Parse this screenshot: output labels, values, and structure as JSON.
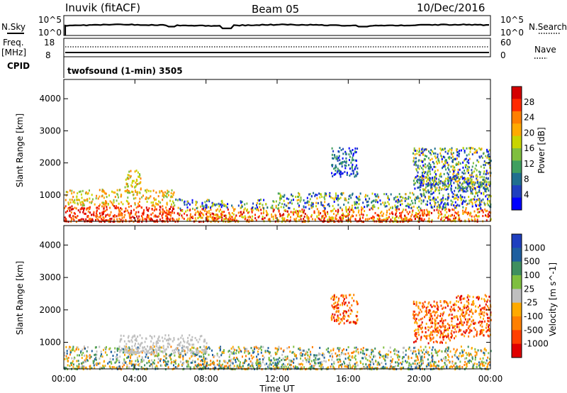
{
  "header": {
    "station": "Inuvik (fitACF)",
    "beam": "Beam 05",
    "date": "10/Dec/2016"
  },
  "top_panels": {
    "nsky_label": "N.Sky",
    "nsky_ticks": [
      "10^5",
      "10^0"
    ],
    "nsearch_label": "N.Search",
    "nsearch_ticks": [
      "10^5",
      "10^0"
    ],
    "freq_label_1": "Freq.",
    "freq_label_2": "[MHz]",
    "freq_ticks": [
      "18",
      "8"
    ],
    "nave_label": "Nave",
    "nave_ticks": [
      "60",
      "0"
    ],
    "cpid_label": "CPID",
    "cpid_value": "twofsound (1-min) 3505"
  },
  "chart_data": [
    {
      "type": "heatmap",
      "panel": "power",
      "ylabel": "Slant Range [km]",
      "xlabel": "Time UT",
      "x_ticks": [
        "00:00",
        "04:00",
        "08:00",
        "12:00",
        "16:00",
        "20:00",
        "00:00"
      ],
      "x_range_hours": [
        0,
        24
      ],
      "y_ticks": [
        1000,
        2000,
        3000,
        4000
      ],
      "ylim": [
        180,
        4600
      ],
      "colorbar_label": "Power [dB]",
      "colorbar_ticks": [
        "28",
        "24",
        "20",
        "16",
        "12",
        "8",
        "4"
      ],
      "colorbar_colors": [
        "#d40000",
        "#ff2a00",
        "#ff7f00",
        "#ffaa00",
        "#c8d400",
        "#7fbf3f",
        "#3f9f5f",
        "#1f6f8f",
        "#1f3fbf",
        "#0000ff"
      ],
      "echo_regions": [
        {
          "t0": 0.0,
          "t1": 6.2,
          "r0": 200,
          "r1": 1200,
          "level": "high"
        },
        {
          "t0": 6.2,
          "t1": 12.0,
          "r0": 200,
          "r1": 900,
          "level": "mixed"
        },
        {
          "t0": 12.0,
          "t1": 20.0,
          "r0": 200,
          "r1": 1100,
          "level": "mixed"
        },
        {
          "t0": 20.0,
          "t1": 24.0,
          "r0": 200,
          "r1": 1600,
          "level": "mixed"
        },
        {
          "t0": 3.4,
          "t1": 4.3,
          "r0": 1100,
          "r1": 1800,
          "level": "high"
        },
        {
          "t0": 15.0,
          "t1": 16.5,
          "r0": 1600,
          "r1": 2500,
          "level": "low"
        },
        {
          "t0": 19.6,
          "t1": 24.0,
          "r0": 1200,
          "r1": 2500,
          "level": "mixed"
        }
      ]
    },
    {
      "type": "heatmap",
      "panel": "velocity",
      "ylabel": "Slant Range [km]",
      "xlabel": "Time UT",
      "x_ticks": [
        "00:00",
        "04:00",
        "08:00",
        "12:00",
        "16:00",
        "20:00",
        "00:00"
      ],
      "x_range_hours": [
        0,
        24
      ],
      "y_ticks": [
        1000,
        2000,
        3000,
        4000
      ],
      "ylim": [
        180,
        4600
      ],
      "colorbar_label": "Velocity [m s^-1]",
      "colorbar_ticks": [
        "1000",
        "500",
        "100",
        "25",
        "-25",
        "-100",
        "-500",
        "-1000"
      ],
      "colorbar_colors": [
        "#1f3fbf",
        "#1f5f9f",
        "#3f8f5f",
        "#7fbf3f",
        "#bfbfbf",
        "#ffaa00",
        "#ff7f00",
        "#ff3f00",
        "#e00000"
      ],
      "echo_regions": [
        {
          "t0": 0.0,
          "t1": 24.0,
          "r0": 200,
          "r1": 900,
          "level": "mixed"
        },
        {
          "t0": 3.0,
          "t1": 8.0,
          "r0": 700,
          "r1": 1250,
          "level": "ground"
        },
        {
          "t0": 19.6,
          "t1": 22.0,
          "r0": 1000,
          "r1": 2300,
          "level": "negative"
        },
        {
          "t0": 15.0,
          "t1": 16.5,
          "r0": 1600,
          "r1": 2500,
          "level": "negative"
        },
        {
          "t0": 22.0,
          "t1": 24.0,
          "r0": 1200,
          "r1": 2500,
          "level": "negative"
        }
      ]
    }
  ]
}
